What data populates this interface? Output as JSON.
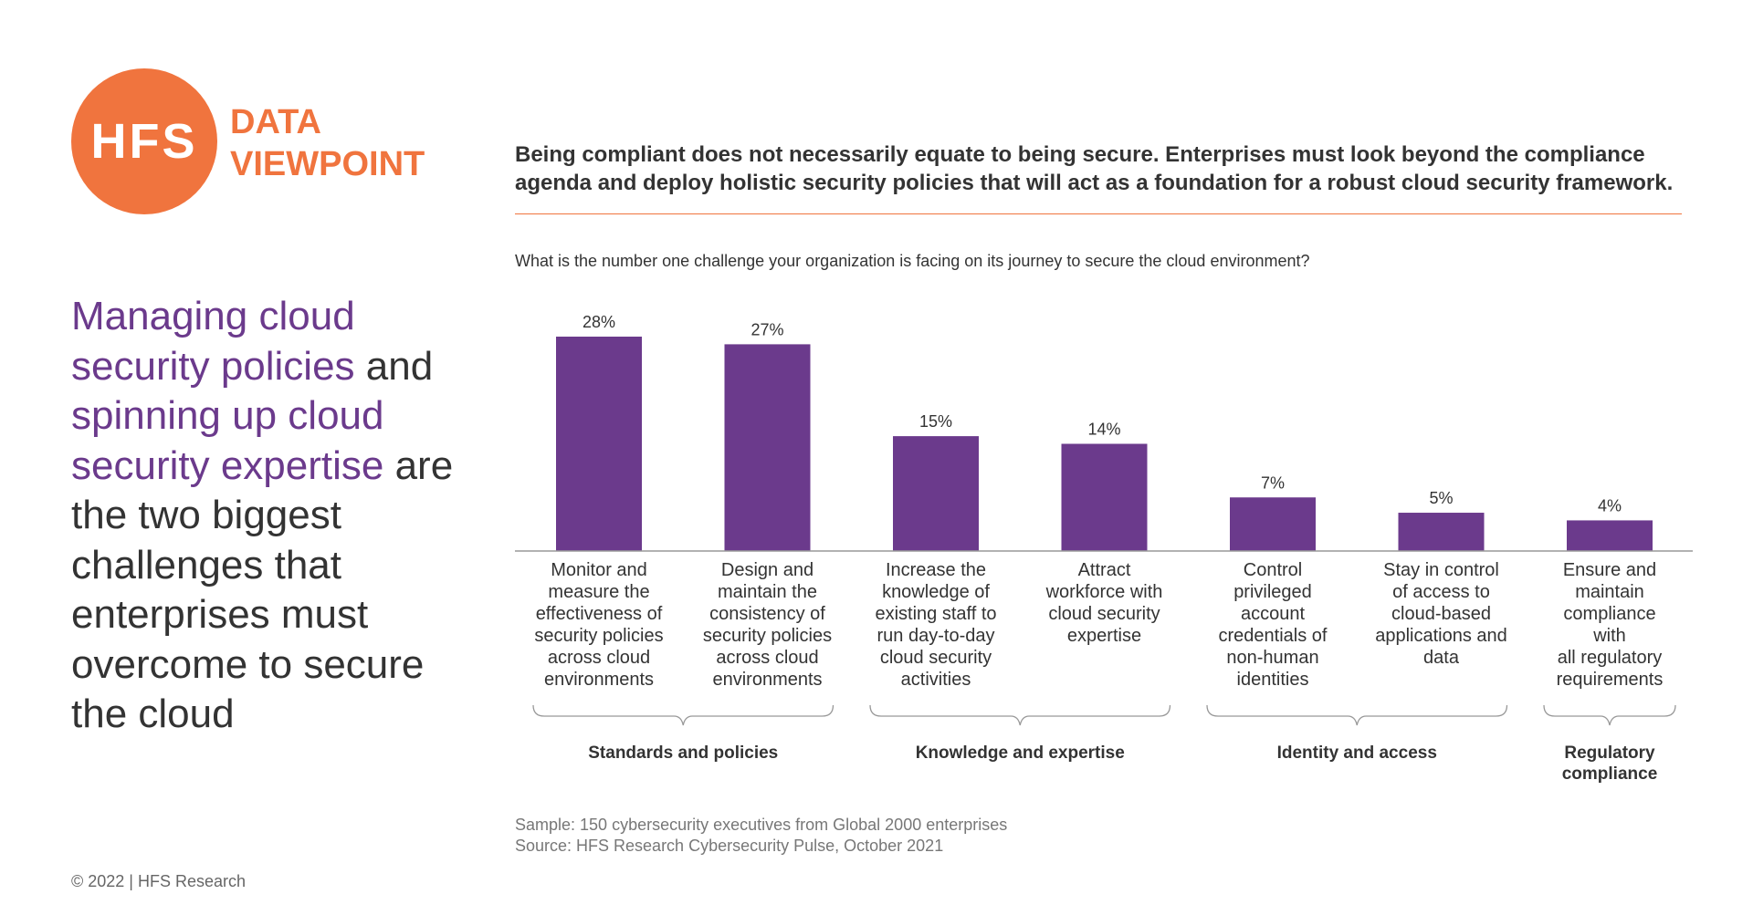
{
  "branding": {
    "logo_mark": "HFS",
    "logo_line1": "DATA",
    "logo_line2": "VIEWPOINT",
    "brand_color": "#f0743e",
    "accent_color": "#6b3a8c"
  },
  "headline": {
    "part1": "Managing cloud security policies",
    "part2": " and ",
    "part3": "spinning up cloud security expertise",
    "part4": " are the two biggest challenges that enterprises must overcome to secure the cloud"
  },
  "takeaway": "Being compliant does not necessarily equate to being secure. Enterprises must look beyond the compliance agenda and deploy holistic security policies that will act as a foundation for a robust cloud security framework.",
  "question": "What is the number one challenge your organization is facing on its journey to secure the cloud environment?",
  "chart_data": {
    "type": "bar",
    "title": "",
    "xlabel": "",
    "ylabel": "",
    "ylim": [
      0,
      30
    ],
    "grid": false,
    "bar_color": "#6b3a8c",
    "categories": [
      "Monitor and measure the effectiveness of security policies across cloud environments",
      "Design and maintain the consistency of security policies across cloud environments",
      "Increase the knowledge of existing staff to run day-to-day cloud security activities",
      "Attract workforce with cloud security expertise",
      "Control privileged account credentials of non-human identities",
      "Stay in control of access to cloud-based applications and data",
      "Ensure and maintain compliance with all regulatory requirements"
    ],
    "category_lines": [
      [
        "Monitor and",
        "measure the",
        "effectiveness of",
        "security policies",
        "across cloud",
        "environments"
      ],
      [
        "Design and",
        "maintain the",
        "consistency of",
        "security policies",
        "across cloud",
        "environments"
      ],
      [
        "Increase the",
        "knowledge of",
        "existing staff to",
        "run day-to-day",
        "cloud security",
        "activities"
      ],
      [
        "Attract",
        "workforce with",
        "cloud security",
        "expertise"
      ],
      [
        "Control",
        "privileged",
        "account",
        "credentials of",
        "non-human",
        "identities"
      ],
      [
        "Stay in control",
        "of access to",
        "cloud-based",
        "applications and",
        "data"
      ],
      [
        "Ensure and",
        "maintain",
        "compliance",
        "with",
        "all regulatory",
        "requirements"
      ]
    ],
    "values": [
      28,
      27,
      15,
      14,
      7,
      5,
      4
    ],
    "value_labels": [
      "28%",
      "27%",
      "15%",
      "14%",
      "7%",
      "5%",
      "4%"
    ],
    "groups": [
      {
        "label_lines": [
          "Standards and policies"
        ],
        "categories": [
          0,
          1
        ]
      },
      {
        "label_lines": [
          "Knowledge and expertise"
        ],
        "categories": [
          2,
          3
        ]
      },
      {
        "label_lines": [
          "Identity and access"
        ],
        "categories": [
          4,
          5
        ]
      },
      {
        "label_lines": [
          "Regulatory",
          "compliance"
        ],
        "categories": [
          6,
          6
        ]
      }
    ]
  },
  "footnote": {
    "sample": "Sample: 150 cybersecurity executives from Global 2000 enterprises",
    "source": "Source: HFS Research Cybersecurity Pulse, October 2021"
  },
  "copyright": "© 2022 | HFS Research"
}
